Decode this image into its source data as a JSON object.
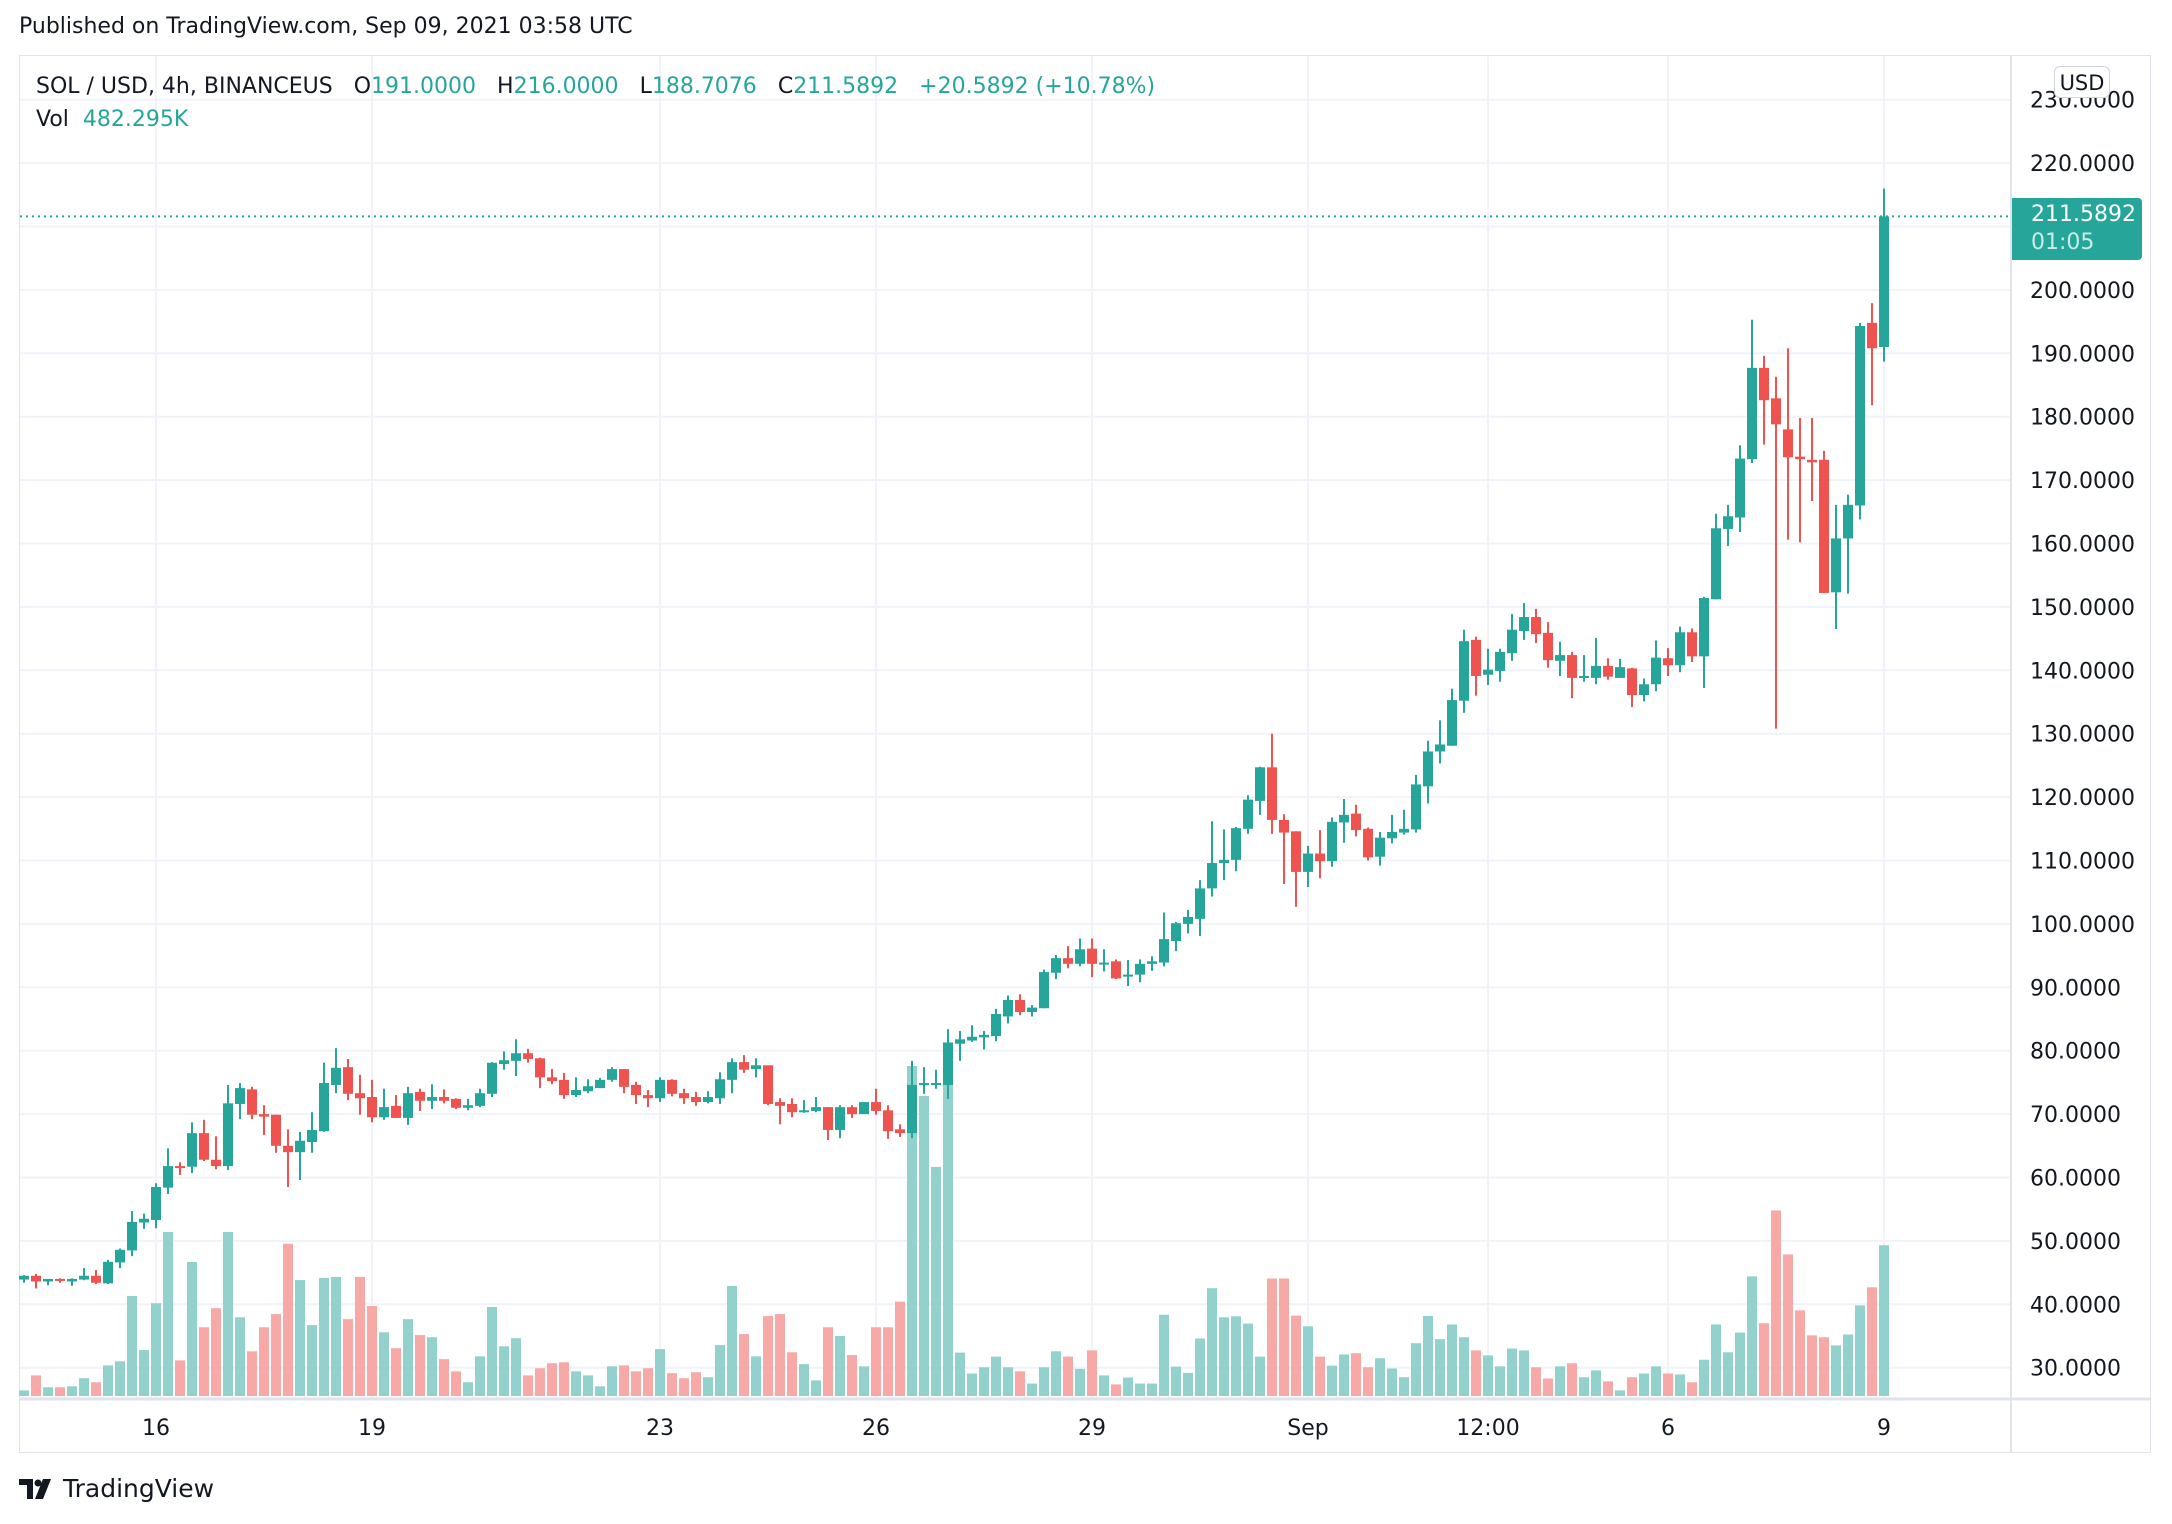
{
  "published": "Published on TradingView.com, Sep 09, 2021 03:58 UTC",
  "legend": {
    "symbol": "SOL / USD, 4h, BINANCEUS",
    "o_label": "O",
    "o": "191.0000",
    "h_label": "H",
    "h": "216.0000",
    "l_label": "L",
    "l": "188.7076",
    "c_label": "C",
    "c": "211.5892",
    "change": "+20.5892 (+10.78%)",
    "vol_label": "Vol",
    "vol": "482.295K"
  },
  "currency": "USD",
  "last_price": {
    "price": "211.5892",
    "countdown": "01:05"
  },
  "logo": {
    "text": "TradingView"
  },
  "colors": {
    "up": "#26a69a",
    "down": "#ef5350",
    "up_volume": "#93d2cc",
    "down_volume": "#f7a9a7",
    "grid": "#f0f3fa"
  },
  "chart_data": {
    "type": "candlestick",
    "symbol": "SOL / USD",
    "interval": "4h",
    "exchange": "BINANCEUS",
    "ylim": [
      25,
      232
    ],
    "grid": true,
    "y_ticks": [
      "30.0000",
      "40.0000",
      "50.0000",
      "60.0000",
      "70.0000",
      "80.0000",
      "90.0000",
      "100.0000",
      "110.0000",
      "120.0000",
      "130.0000",
      "140.0000",
      "150.0000",
      "160.0000",
      "170.0000",
      "180.0000",
      "190.0000",
      "200.0000",
      "210.0000",
      "220.0000",
      "230.0000"
    ],
    "x_ticks": [
      {
        "label": "16",
        "bar": 12
      },
      {
        "label": "19",
        "bar": 30
      },
      {
        "label": "23",
        "bar": 54
      },
      {
        "label": "26",
        "bar": 72
      },
      {
        "label": "29",
        "bar": 90
      },
      {
        "label": "Sep",
        "bar": 108
      },
      {
        "label": "12:00",
        "bar": 123
      },
      {
        "label": "6",
        "bar": 138
      },
      {
        "label": "9",
        "bar": 156
      }
    ],
    "columns": [
      "open",
      "high",
      "low",
      "close",
      "volume_k"
    ],
    "candles": [
      [
        43.9,
        44.6,
        43.4,
        44.5,
        18
      ],
      [
        44.5,
        44.8,
        42.5,
        43.6,
        66
      ],
      [
        43.6,
        44.0,
        43.0,
        44.0,
        28
      ],
      [
        44.0,
        44.1,
        43.4,
        43.7,
        28
      ],
      [
        43.6,
        44.1,
        42.9,
        44.0,
        31
      ],
      [
        43.9,
        45.7,
        43.8,
        44.5,
        57
      ],
      [
        44.5,
        45.4,
        43.2,
        43.4,
        44
      ],
      [
        43.3,
        47.0,
        43.2,
        46.7,
        98
      ],
      [
        46.6,
        48.8,
        45.7,
        48.6,
        111
      ],
      [
        48.5,
        54.7,
        47.6,
        53.0,
        320
      ],
      [
        52.9,
        54.3,
        51.9,
        53.5,
        147
      ],
      [
        53.3,
        59.1,
        52.0,
        58.5,
        297
      ],
      [
        58.4,
        64.6,
        57.4,
        61.8,
        525
      ],
      [
        61.8,
        62.4,
        60.4,
        61.7,
        114
      ],
      [
        61.7,
        68.7,
        60.7,
        67.0,
        429
      ],
      [
        67.0,
        69.1,
        62.6,
        62.8,
        220
      ],
      [
        62.8,
        66.5,
        61.3,
        61.8,
        281
      ],
      [
        61.8,
        74.6,
        61.2,
        71.7,
        525
      ],
      [
        71.6,
        74.9,
        69.2,
        74.1,
        252
      ],
      [
        73.9,
        74.3,
        69.2,
        69.9,
        143
      ],
      [
        70.0,
        71.4,
        66.7,
        69.6,
        220
      ],
      [
        69.9,
        69.9,
        63.9,
        65.0,
        262
      ],
      [
        65.0,
        67.6,
        58.5,
        64.0,
        487
      ],
      [
        64.0,
        67.2,
        59.6,
        65.8,
        371
      ],
      [
        65.6,
        70.3,
        63.9,
        67.5,
        227
      ],
      [
        67.3,
        78.1,
        67.2,
        74.9,
        378
      ],
      [
        74.6,
        80.4,
        73.3,
        77.3,
        381
      ],
      [
        77.4,
        78.7,
        72.2,
        73.2,
        246
      ],
      [
        73.3,
        76.2,
        69.9,
        72.5,
        381
      ],
      [
        72.7,
        75.4,
        68.7,
        69.5,
        288
      ],
      [
        69.5,
        74.0,
        69.1,
        71.1,
        204
      ],
      [
        71.3,
        73.0,
        69.4,
        69.4,
        153
      ],
      [
        69.4,
        74.3,
        68.3,
        73.3,
        246
      ],
      [
        73.5,
        74.0,
        70.5,
        72.1,
        195
      ],
      [
        72.1,
        74.7,
        70.8,
        72.7,
        188
      ],
      [
        72.7,
        73.9,
        71.7,
        72.1,
        118
      ],
      [
        72.4,
        72.5,
        70.8,
        71.0,
        79
      ],
      [
        71.0,
        72.4,
        70.6,
        71.4,
        44
      ],
      [
        71.3,
        74.0,
        71.1,
        73.3,
        127
      ],
      [
        73.2,
        78.2,
        72.7,
        78.1,
        285
      ],
      [
        77.9,
        79.9,
        77.0,
        78.5,
        159
      ],
      [
        78.4,
        81.8,
        76.0,
        79.6,
        185
      ],
      [
        79.6,
        80.3,
        78.1,
        78.7,
        66
      ],
      [
        78.8,
        78.9,
        74.1,
        75.8,
        89
      ],
      [
        75.8,
        77.1,
        74.7,
        75.2,
        105
      ],
      [
        75.4,
        76.5,
        72.4,
        73.0,
        108
      ],
      [
        73.0,
        75.8,
        72.7,
        73.8,
        79
      ],
      [
        73.6,
        75.5,
        73.3,
        74.4,
        66
      ],
      [
        74.1,
        75.7,
        74.1,
        75.4,
        31
      ],
      [
        75.4,
        77.4,
        75.1,
        77.1,
        95
      ],
      [
        77.1,
        77.1,
        73.3,
        74.3,
        98
      ],
      [
        74.6,
        75.1,
        71.6,
        73.0,
        79
      ],
      [
        73.0,
        73.8,
        71.1,
        72.5,
        89
      ],
      [
        72.5,
        75.8,
        71.9,
        75.4,
        150
      ],
      [
        75.4,
        75.5,
        72.8,
        73.2,
        73
      ],
      [
        73.3,
        74.0,
        71.6,
        72.5,
        57
      ],
      [
        72.7,
        73.5,
        71.3,
        71.9,
        76
      ],
      [
        71.9,
        73.6,
        71.7,
        72.7,
        60
      ],
      [
        72.5,
        76.6,
        71.6,
        75.5,
        163
      ],
      [
        75.4,
        78.8,
        73.3,
        78.2,
        352
      ],
      [
        78.2,
        79.3,
        76.5,
        77.0,
        198
      ],
      [
        77.1,
        78.8,
        75.8,
        77.7,
        127
      ],
      [
        77.7,
        77.7,
        71.4,
        71.6,
        256
      ],
      [
        71.9,
        72.5,
        68.4,
        71.3,
        262
      ],
      [
        71.6,
        72.5,
        69.5,
        70.3,
        140
      ],
      [
        70.3,
        72.2,
        70.2,
        70.6,
        102
      ],
      [
        70.5,
        72.7,
        70.3,
        71.1,
        50
      ],
      [
        71.1,
        71.1,
        65.9,
        67.5,
        220
      ],
      [
        67.5,
        71.4,
        66.2,
        71.1,
        192
      ],
      [
        71.1,
        71.4,
        69.4,
        70.0,
        131
      ],
      [
        70.0,
        71.9,
        70.0,
        71.9,
        95
      ],
      [
        71.9,
        74.0,
        69.9,
        70.5,
        220
      ],
      [
        70.6,
        71.4,
        66.1,
        67.3,
        220
      ],
      [
        67.6,
        68.4,
        66.4,
        67.0,
        302
      ],
      [
        67.0,
        78.4,
        66.2,
        74.6,
        1056
      ],
      [
        74.6,
        77.4,
        73.2,
        74.9,
        960
      ],
      [
        74.6,
        77.0,
        74.0,
        74.9,
        733
      ],
      [
        74.6,
        83.4,
        72.4,
        81.3,
        1062
      ],
      [
        81.1,
        83.1,
        78.4,
        81.8,
        139
      ],
      [
        81.6,
        84.0,
        81.4,
        82.2,
        72
      ],
      [
        82.1,
        83.1,
        80.2,
        82.5,
        92
      ],
      [
        82.3,
        86.6,
        81.5,
        85.8,
        126
      ],
      [
        85.4,
        88.7,
        84.3,
        88.0,
        92
      ],
      [
        88.0,
        88.9,
        85.6,
        86.1,
        79
      ],
      [
        86.1,
        87.2,
        85.4,
        86.8,
        40
      ],
      [
        86.7,
        92.8,
        86.7,
        92.4,
        92
      ],
      [
        92.3,
        95.1,
        91.3,
        94.6,
        143
      ],
      [
        94.6,
        96.5,
        93.0,
        93.7,
        126
      ],
      [
        93.7,
        97.7,
        93.3,
        96.0,
        87
      ],
      [
        96.1,
        97.7,
        91.6,
        93.7,
        146
      ],
      [
        93.7,
        96.0,
        92.5,
        93.9,
        66
      ],
      [
        94.1,
        94.4,
        91.3,
        91.4,
        37
      ],
      [
        91.7,
        94.3,
        90.2,
        92.0,
        59
      ],
      [
        92.0,
        94.4,
        90.8,
        93.7,
        40
      ],
      [
        93.7,
        94.9,
        92.6,
        94.1,
        40
      ],
      [
        93.9,
        101.8,
        93.3,
        97.6,
        260
      ],
      [
        97.3,
        100.3,
        95.7,
        100.1,
        94
      ],
      [
        100.0,
        102.2,
        98.5,
        101.1,
        74
      ],
      [
        100.8,
        106.9,
        98.1,
        105.6,
        184
      ],
      [
        105.6,
        116.2,
        104.3,
        109.6,
        345
      ],
      [
        109.6,
        114.9,
        106.9,
        110.1,
        252
      ],
      [
        110.1,
        115.3,
        108.3,
        115.1,
        255
      ],
      [
        115.0,
        120.3,
        114.2,
        119.6,
        232
      ],
      [
        119.4,
        124.8,
        117.2,
        124.7,
        126
      ],
      [
        124.7,
        130.0,
        114.2,
        116.4,
        376
      ],
      [
        116.4,
        117.3,
        106.3,
        114.4,
        376
      ],
      [
        114.6,
        114.6,
        102.7,
        108.2,
        257
      ],
      [
        108.2,
        112.3,
        105.8,
        111.1,
        223
      ],
      [
        111.1,
        114.8,
        107.2,
        109.9,
        126
      ],
      [
        109.9,
        116.8,
        109.0,
        116.1,
        97
      ],
      [
        116.0,
        119.7,
        112.8,
        117.2,
        133
      ],
      [
        117.4,
        118.8,
        113.8,
        114.8,
        137
      ],
      [
        115.0,
        115.2,
        110.0,
        110.5,
        92
      ],
      [
        110.6,
        114.5,
        109.2,
        113.6,
        121
      ],
      [
        113.5,
        117.2,
        112.7,
        114.5,
        88
      ],
      [
        114.4,
        118.0,
        114.1,
        115.0,
        60
      ],
      [
        114.9,
        123.5,
        114.4,
        122.0,
        169
      ],
      [
        121.7,
        128.9,
        119.0,
        127.2,
        256
      ],
      [
        127.2,
        132.1,
        125.3,
        128.3,
        182
      ],
      [
        128.1,
        137.1,
        128.1,
        135.3,
        229
      ],
      [
        135.2,
        146.4,
        133.3,
        144.6,
        188
      ],
      [
        144.8,
        145.3,
        136.0,
        139.1,
        146
      ],
      [
        139.3,
        143.4,
        137.7,
        140.1,
        130
      ],
      [
        139.9,
        143.4,
        138.2,
        142.9,
        95
      ],
      [
        142.7,
        148.9,
        141.5,
        146.4,
        152
      ],
      [
        146.2,
        150.6,
        144.8,
        148.4,
        146
      ],
      [
        148.4,
        149.7,
        144.3,
        145.7,
        92
      ],
      [
        145.9,
        147.6,
        140.4,
        141.6,
        56
      ],
      [
        141.5,
        144.5,
        139.1,
        142.4,
        95
      ],
      [
        142.4,
        142.9,
        135.6,
        138.8,
        105
      ],
      [
        138.8,
        142.4,
        138.2,
        139.1,
        60
      ],
      [
        138.8,
        145.1,
        137.8,
        140.7,
        82
      ],
      [
        140.7,
        141.9,
        138.5,
        139.0,
        47
      ],
      [
        138.8,
        141.8,
        138.8,
        140.5,
        18
      ],
      [
        140.3,
        140.4,
        134.2,
        136.1,
        60
      ],
      [
        136.1,
        138.7,
        135.1,
        137.8,
        72
      ],
      [
        137.8,
        144.7,
        136.7,
        142.0,
        95
      ],
      [
        141.9,
        143.5,
        139.1,
        140.8,
        72
      ],
      [
        140.8,
        146.9,
        139.7,
        146.0,
        69
      ],
      [
        146.0,
        146.6,
        141.3,
        142.2,
        44
      ],
      [
        142.2,
        151.6,
        137.2,
        151.4,
        116
      ],
      [
        151.2,
        164.7,
        151.2,
        162.4,
        229
      ],
      [
        162.3,
        166.1,
        159.6,
        164.3,
        140
      ],
      [
        164.1,
        175.5,
        161.8,
        173.4,
        203
      ],
      [
        173.3,
        195.3,
        172.7,
        187.7,
        383
      ],
      [
        187.7,
        189.6,
        175.6,
        182.6,
        233
      ],
      [
        182.9,
        186.3,
        130.8,
        178.8,
        594
      ],
      [
        178.0,
        190.8,
        160.6,
        173.6,
        453
      ],
      [
        173.7,
        179.8,
        160.2,
        173.3,
        274
      ],
      [
        173.2,
        179.8,
        166.7,
        172.8,
        194
      ],
      [
        173.2,
        174.6,
        152.2,
        152.2,
        188
      ],
      [
        152.3,
        166.1,
        146.5,
        160.8,
        162
      ],
      [
        160.8,
        167.7,
        152.1,
        166.1,
        197
      ],
      [
        166.0,
        194.8,
        163.8,
        194.3,
        290
      ],
      [
        194.8,
        197.9,
        181.8,
        190.8,
        348
      ],
      [
        191.0,
        216.0,
        188.7076,
        211.5892,
        482.295
      ]
    ],
    "last_close": 211.5892
  }
}
